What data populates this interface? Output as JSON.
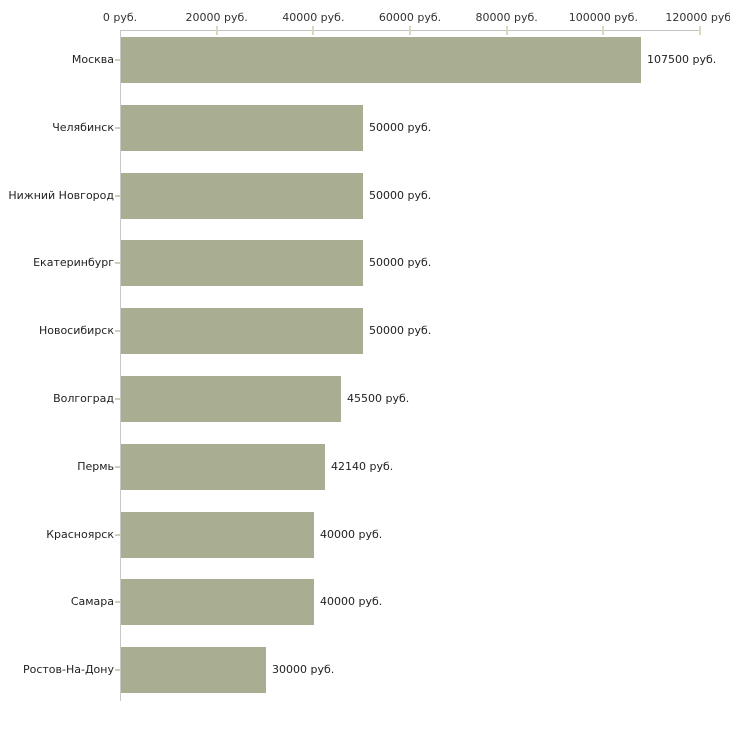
{
  "chart_data": {
    "type": "bar",
    "orientation": "horizontal",
    "title": "",
    "unit": "руб.",
    "categories": [
      "Москва",
      "Челябинск",
      "Нижний Новгород",
      "Екатеринбург",
      "Новосибирск",
      "Волгоград",
      "Пермь",
      "Красноярск",
      "Самара",
      "Ростов-На-Дону"
    ],
    "values": [
      107500,
      50000,
      50000,
      50000,
      50000,
      45500,
      42140,
      40000,
      40000,
      30000
    ],
    "value_labels": [
      "107500 руб.",
      "50000 руб.",
      "50000 руб.",
      "50000 руб.",
      "50000 руб.",
      "45500 руб.",
      "42140 руб.",
      "40000 руб.",
      "40000 руб.",
      "30000 руб."
    ],
    "x_axis": {
      "position": "top",
      "range": [
        0,
        120000
      ],
      "ticks": [
        0,
        20000,
        40000,
        60000,
        80000,
        100000,
        120000
      ],
      "tick_labels": [
        "0 руб.",
        "20000 руб.",
        "40000 руб.",
        "60000 руб.",
        "80000 руб.",
        "100000 руб.",
        "120000 руб."
      ]
    },
    "grid": false,
    "legend": false,
    "colors": {
      "bar": "#a9ae93",
      "axis_line": "#c3c3c3",
      "tick_mark": "#d8dabd",
      "label_text": "#222222",
      "background": "#ffffff"
    }
  }
}
